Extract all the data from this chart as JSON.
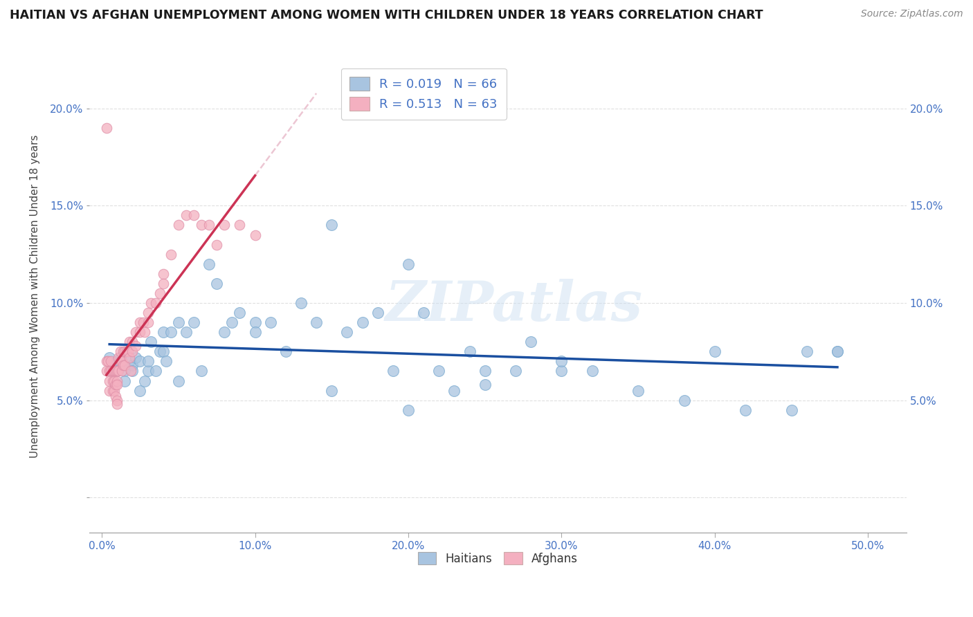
{
  "title": "HAITIAN VS AFGHAN UNEMPLOYMENT AMONG WOMEN WITH CHILDREN UNDER 18 YEARS CORRELATION CHART",
  "source": "Source: ZipAtlas.com",
  "ylabel": "Unemployment Among Women with Children Under 18 years",
  "watermark": "ZIPatlas",
  "x_ticks": [
    0.0,
    0.1,
    0.2,
    0.3,
    0.4,
    0.5
  ],
  "x_tick_labels": [
    "0.0%",
    "10.0%",
    "20.0%",
    "30.0%",
    "40.0%",
    "50.0%"
  ],
  "y_ticks": [
    0.0,
    0.05,
    0.1,
    0.15,
    0.2
  ],
  "y_tick_labels": [
    "",
    "5.0%",
    "10.0%",
    "15.0%",
    "20.0%"
  ],
  "xlim": [
    -0.008,
    0.525
  ],
  "ylim": [
    -0.018,
    0.225
  ],
  "haitian_color": "#a8c4e0",
  "haitian_line_color": "#1a4fa0",
  "afghan_color": "#f4b0c0",
  "afghan_line_color": "#cc3355",
  "dashed_line_color": "#e8b8c8",
  "grid_color": "#cccccc",
  "title_color": "#1a1a1a",
  "tick_label_color": "#4472c4",
  "source_color": "#888888",
  "haitian_scatter_x": [
    0.005,
    0.008,
    0.01,
    0.01,
    0.012,
    0.015,
    0.015,
    0.018,
    0.02,
    0.02,
    0.022,
    0.025,
    0.025,
    0.028,
    0.03,
    0.03,
    0.032,
    0.035,
    0.038,
    0.04,
    0.04,
    0.042,
    0.045,
    0.05,
    0.05,
    0.055,
    0.06,
    0.065,
    0.07,
    0.075,
    0.08,
    0.085,
    0.09,
    0.1,
    0.1,
    0.11,
    0.12,
    0.13,
    0.14,
    0.15,
    0.16,
    0.17,
    0.18,
    0.19,
    0.2,
    0.21,
    0.22,
    0.23,
    0.24,
    0.25,
    0.27,
    0.28,
    0.3,
    0.32,
    0.35,
    0.38,
    0.4,
    0.42,
    0.45,
    0.46,
    0.48,
    0.15,
    0.2,
    0.25,
    0.3,
    0.48
  ],
  "haitian_scatter_y": [
    0.072,
    0.068,
    0.07,
    0.065,
    0.072,
    0.065,
    0.06,
    0.07,
    0.068,
    0.065,
    0.072,
    0.07,
    0.055,
    0.06,
    0.065,
    0.07,
    0.08,
    0.065,
    0.075,
    0.075,
    0.085,
    0.07,
    0.085,
    0.09,
    0.06,
    0.085,
    0.09,
    0.065,
    0.12,
    0.11,
    0.085,
    0.09,
    0.095,
    0.09,
    0.085,
    0.09,
    0.075,
    0.1,
    0.09,
    0.055,
    0.085,
    0.09,
    0.095,
    0.065,
    0.045,
    0.095,
    0.065,
    0.055,
    0.075,
    0.058,
    0.065,
    0.08,
    0.065,
    0.065,
    0.055,
    0.05,
    0.075,
    0.045,
    0.045,
    0.075,
    0.075,
    0.14,
    0.12,
    0.065,
    0.07,
    0.075
  ],
  "afghan_scatter_x": [
    0.003,
    0.003,
    0.004,
    0.005,
    0.005,
    0.005,
    0.006,
    0.006,
    0.007,
    0.007,
    0.007,
    0.008,
    0.008,
    0.008,
    0.009,
    0.009,
    0.009,
    0.01,
    0.01,
    0.01,
    0.01,
    0.01,
    0.011,
    0.011,
    0.012,
    0.012,
    0.013,
    0.013,
    0.014,
    0.014,
    0.015,
    0.015,
    0.016,
    0.017,
    0.018,
    0.018,
    0.019,
    0.02,
    0.02,
    0.022,
    0.022,
    0.025,
    0.025,
    0.027,
    0.028,
    0.03,
    0.03,
    0.032,
    0.035,
    0.038,
    0.04,
    0.04,
    0.045,
    0.05,
    0.055,
    0.06,
    0.065,
    0.07,
    0.075,
    0.08,
    0.09,
    0.1,
    0.003
  ],
  "afghan_scatter_y": [
    0.065,
    0.07,
    0.07,
    0.065,
    0.06,
    0.055,
    0.07,
    0.065,
    0.065,
    0.06,
    0.055,
    0.065,
    0.06,
    0.055,
    0.065,
    0.058,
    0.052,
    0.065,
    0.06,
    0.058,
    0.05,
    0.048,
    0.072,
    0.065,
    0.075,
    0.07,
    0.07,
    0.065,
    0.075,
    0.068,
    0.075,
    0.068,
    0.075,
    0.075,
    0.08,
    0.072,
    0.065,
    0.08,
    0.075,
    0.085,
    0.078,
    0.09,
    0.085,
    0.09,
    0.085,
    0.095,
    0.09,
    0.1,
    0.1,
    0.105,
    0.115,
    0.11,
    0.125,
    0.14,
    0.145,
    0.145,
    0.14,
    0.14,
    0.13,
    0.14,
    0.14,
    0.135,
    0.19
  ]
}
